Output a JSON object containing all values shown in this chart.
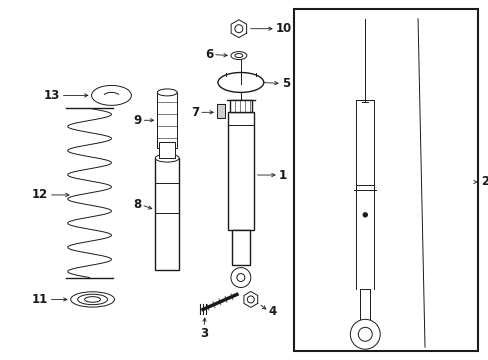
{
  "bg_color": "#ffffff",
  "line_color": "#1a1a1a",
  "arrow_color": "#1a1a1a",
  "fig_width": 4.89,
  "fig_height": 3.6,
  "dpi": 100,
  "label_fontsize": 8.5,
  "label_fontweight": "bold"
}
